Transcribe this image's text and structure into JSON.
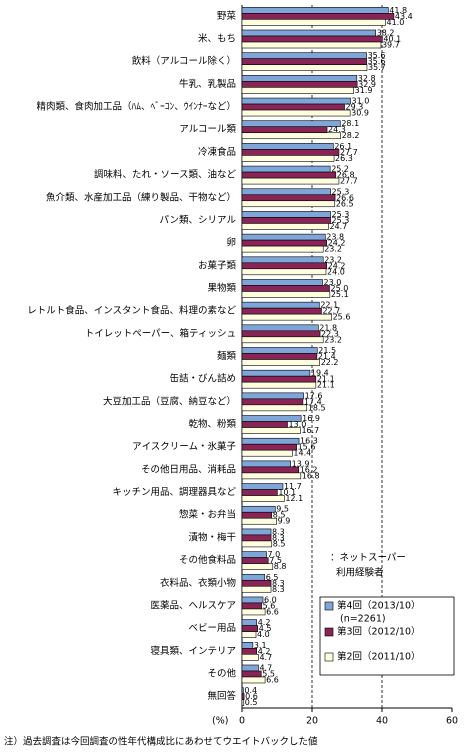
{
  "chart_data": {
    "type": "bar",
    "orientation": "horizontal",
    "categories": [
      "野菜",
      "米、もち",
      "飲料（アルコール除く）",
      "牛乳、乳製品",
      "精肉類、食肉加工品（ﾊﾑ、ﾍﾞｰｺﾝ、ｳｲﾝﾅｰなど）",
      "アルコール類",
      "冷凍食品",
      "調味料、たれ・ソース類、油など",
      "魚介類、水産加工品（練り製品、干物など）",
      "パン類、シリアル",
      "卵",
      "お菓子類",
      "果物類",
      "レトルト食品、インスタント食品、料理の素など",
      "トイレットペーパー、箱ティッシュ",
      "麺類",
      "缶詰・びん詰め",
      "大豆加工品（豆腐、納豆など）",
      "乾物、粉類",
      "アイスクリーム・氷菓子",
      "その他日用品、消耗品",
      "キッチン用品、調理器具など",
      "惣菜・お弁当",
      "漬物・梅干",
      "その他食料品",
      "衣料品、衣類小物",
      "医薬品、ヘルスケア",
      "ベビー用品",
      "寝具類、インテリア",
      "その他",
      "無回答"
    ],
    "series": [
      {
        "name": "第4回（2013/10）",
        "color": "#7fa6d8",
        "values": [
          41.8,
          38.2,
          35.6,
          32.8,
          31.0,
          28.1,
          26.1,
          25.2,
          25.3,
          25.3,
          23.8,
          23.2,
          23.0,
          22.1,
          21.8,
          21.5,
          19.4,
          17.6,
          16.9,
          16.3,
          13.9,
          11.7,
          9.5,
          8.3,
          7.0,
          6.5,
          6.0,
          4.2,
          3.1,
          4.7,
          0.4
        ],
        "value_labels": [
          "41.8",
          "38.2",
          "35.6",
          "32.8",
          "31.0",
          "28.1",
          "26.1",
          "25.2",
          "25.3",
          "25.3",
          "23.8",
          "23.2",
          "23.0",
          "22.1",
          "21.8",
          "21.5",
          "19.4",
          "17.6",
          "16.9",
          "16.3",
          "13.9",
          "11.7",
          "9.5",
          "8.3",
          "7.0",
          "6.5",
          "6.0",
          "4.2",
          "3.1",
          "4.7",
          "0.4"
        ]
      },
      {
        "name": "第3回（2012/10）",
        "color": "#8b2456",
        "values": [
          43.4,
          40.1,
          35.6,
          32.9,
          29.3,
          24.3,
          27.7,
          26.8,
          26.6,
          25.3,
          24.2,
          24.2,
          25.0,
          22.7,
          22.3,
          21.4,
          21.1,
          17.4,
          13.0,
          15.6,
          16.2,
          10.1,
          8.5,
          8.3,
          7.5,
          8.3,
          5.6,
          4.5,
          4.2,
          5.5,
          0.6
        ],
        "value_labels": [
          "43.4",
          "40.1",
          "35.6",
          "32.9",
          "29.3",
          "24.3",
          "27.7",
          "26.8",
          "26.6",
          "25.3",
          "24.2",
          "24.2",
          "25.0",
          "22.7",
          "22.3",
          "21.4",
          "21.1",
          "17.4",
          "13.0",
          "15.6",
          "16.2",
          "10.1",
          "8.5",
          "8.3",
          "7.5",
          "8.3",
          "5.6",
          "4.5",
          "4.2",
          "5.5",
          "0.6"
        ]
      },
      {
        "name": "第2回（2011/10）",
        "color": "#ffffe0",
        "values": [
          41.0,
          39.7,
          35.7,
          31.9,
          30.9,
          28.2,
          26.3,
          27.7,
          26.5,
          24.7,
          23.2,
          24.0,
          25.1,
          25.6,
          23.2,
          22.2,
          21.1,
          18.5,
          16.7,
          14.4,
          16.8,
          12.1,
          9.9,
          8.5,
          8.8,
          8.3,
          6.6,
          4.0,
          4.7,
          6.6,
          0.5
        ],
        "value_labels": [
          "41.0",
          "39.7",
          "35.7",
          "31.9",
          "30.9",
          "28.2",
          "26.3",
          "27.7",
          "26.5",
          "24.7",
          "23.2",
          "24.0",
          "25.1",
          "25.6",
          "23.2",
          "22.2",
          "21.1",
          "18.5",
          "16.7",
          "14.4",
          "16.8",
          "12.1",
          "9.9",
          "8.5",
          "8.8",
          "8.3",
          "6.6",
          "4.0",
          "4.7",
          "6.6",
          "0.5"
        ]
      }
    ],
    "xlim": [
      0,
      60
    ],
    "xticks": [
      0,
      20,
      40,
      60
    ],
    "grid": true,
    "xlabel": "(%)",
    "annotation": [
      "：ネットスーパー",
      "利用経験者"
    ],
    "legend_note": "(n=2261)",
    "note": "注）過去調査は今回調査の性年代構成比にあわせてウエイトバックした値"
  }
}
